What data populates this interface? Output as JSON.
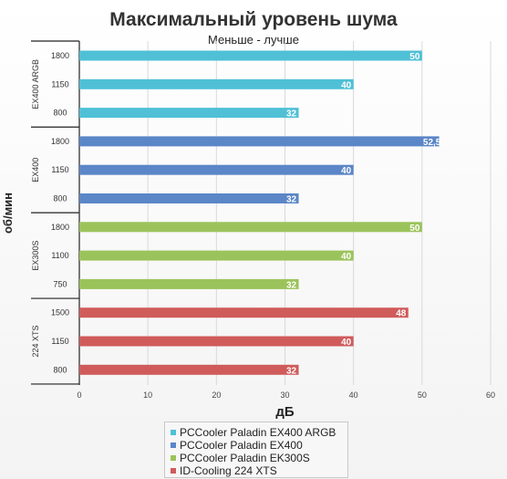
{
  "chart_data": {
    "type": "bar",
    "orientation": "horizontal",
    "title": "Максимальный уровень шума",
    "subtitle": "Меньше - лучше",
    "xlabel": "дБ",
    "ylabel": "об/мин",
    "xlim": [
      0,
      60
    ],
    "xticks": [
      "0",
      "10",
      "20",
      "30",
      "40",
      "50",
      "60"
    ],
    "grid": true,
    "legend_position": "bottom",
    "groups": [
      {
        "label": "EX400 ARGB",
        "series": "PCCooler Paladin EX400 ARGB",
        "color": "#4fc0d6",
        "bars": [
          {
            "rpm": "1800",
            "value": 50,
            "value_label": "50"
          },
          {
            "rpm": "1150",
            "value": 40,
            "value_label": "40"
          },
          {
            "rpm": "800",
            "value": 32,
            "value_label": "32"
          }
        ]
      },
      {
        "label": "EX400",
        "series": "PCCooler Paladin EX400",
        "color": "#5b86c7",
        "bars": [
          {
            "rpm": "1800",
            "value": 52.5,
            "value_label": "52,5"
          },
          {
            "rpm": "1150",
            "value": 40,
            "value_label": "40"
          },
          {
            "rpm": "800",
            "value": 32,
            "value_label": "32"
          }
        ]
      },
      {
        "label": "EX300S",
        "series": "PCCooler Paladin EK300S",
        "color": "#9bc35b",
        "bars": [
          {
            "rpm": "1800",
            "value": 50,
            "value_label": "50"
          },
          {
            "rpm": "1100",
            "value": 40,
            "value_label": "40"
          },
          {
            "rpm": "750",
            "value": 32,
            "value_label": "32"
          }
        ]
      },
      {
        "label": "224 XTS",
        "series": "ID-Cooling 224 XTS",
        "color": "#d05b5b",
        "bars": [
          {
            "rpm": "1500",
            "value": 48,
            "value_label": "48"
          },
          {
            "rpm": "1150",
            "value": 40,
            "value_label": "40"
          },
          {
            "rpm": "800",
            "value": 32,
            "value_label": "32"
          }
        ]
      }
    ],
    "legend": [
      {
        "name": "PCCooler Paladin EX400 ARGB",
        "color": "#4fc0d6"
      },
      {
        "name": "PCCooler Paladin EX400",
        "color": "#5b86c7"
      },
      {
        "name": "PCCooler Paladin EK300S",
        "color": "#9bc35b"
      },
      {
        "name": "ID-Cooling 224 XTS",
        "color": "#d05b5b"
      }
    ]
  }
}
